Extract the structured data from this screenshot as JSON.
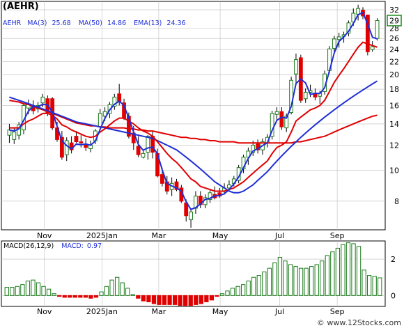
{
  "chart_data": [
    {
      "type": "candlestick",
      "title": "(AEHR)",
      "legend": {
        "ticker": "AEHR",
        "ma3_label": "MA(3)",
        "ma3_value": "25.68",
        "ma50_label": "MA(50)",
        "ma50_value": "14.86",
        "ema13_label": "EMA(13)",
        "ema13_value": "24.36"
      },
      "y_scale": "log",
      "ylim": [
        6.5,
        34
      ],
      "y_ticks": [
        8,
        10,
        12,
        14,
        16,
        18,
        20,
        22,
        24,
        26,
        28,
        32
      ],
      "last_price": "29",
      "x_ticks": [
        "Nov",
        "2025Jan",
        "Mar",
        "May",
        "Jul",
        "Sep"
      ],
      "colors": {
        "up": "#1a7a1a",
        "down": "#e00000",
        "ma_short": "#1f2fd6",
        "ma_long": "#e00000",
        "price_box": "#1a8a1a"
      },
      "candles": [
        {
          "o": 12.9,
          "h": 14.0,
          "l": 12.2,
          "c": 13.4
        },
        {
          "o": 12.5,
          "h": 13.6,
          "l": 12.1,
          "c": 13.2
        },
        {
          "o": 12.9,
          "h": 14.2,
          "l": 12.5,
          "c": 13.9
        },
        {
          "o": 13.4,
          "h": 16.2,
          "l": 13.0,
          "c": 16.0
        },
        {
          "o": 15.7,
          "h": 16.7,
          "l": 15.0,
          "c": 16.2
        },
        {
          "o": 15.9,
          "h": 16.6,
          "l": 15.0,
          "c": 15.4
        },
        {
          "o": 15.6,
          "h": 16.4,
          "l": 15.2,
          "c": 16.0
        },
        {
          "o": 16.3,
          "h": 17.4,
          "l": 15.8,
          "c": 17.0
        },
        {
          "o": 16.8,
          "h": 17.2,
          "l": 14.8,
          "c": 15.2
        },
        {
          "o": 16.8,
          "h": 17.0,
          "l": 13.4,
          "c": 13.6
        },
        {
          "o": 13.6,
          "h": 14.2,
          "l": 12.3,
          "c": 12.5
        },
        {
          "o": 12.7,
          "h": 13.3,
          "l": 10.8,
          "c": 11.0
        },
        {
          "o": 11.2,
          "h": 12.7,
          "l": 10.7,
          "c": 12.4
        },
        {
          "o": 12.2,
          "h": 12.8,
          "l": 11.3,
          "c": 11.6
        },
        {
          "o": 12.8,
          "h": 13.3,
          "l": 12.2,
          "c": 12.3
        },
        {
          "o": 12.3,
          "h": 12.9,
          "l": 11.8,
          "c": 12.2
        },
        {
          "o": 12.1,
          "h": 12.6,
          "l": 11.5,
          "c": 11.8
        },
        {
          "o": 11.7,
          "h": 12.4,
          "l": 11.4,
          "c": 12.0
        },
        {
          "o": 12.4,
          "h": 13.5,
          "l": 12.1,
          "c": 13.3
        },
        {
          "o": 13.7,
          "h": 15.6,
          "l": 13.4,
          "c": 15.1
        },
        {
          "o": 14.8,
          "h": 15.8,
          "l": 14.3,
          "c": 15.3
        },
        {
          "o": 15.1,
          "h": 16.4,
          "l": 14.6,
          "c": 16.1
        },
        {
          "o": 15.9,
          "h": 17.4,
          "l": 15.5,
          "c": 17.0
        },
        {
          "o": 17.4,
          "h": 18.7,
          "l": 16.0,
          "c": 16.4
        },
        {
          "o": 16.3,
          "h": 16.8,
          "l": 14.4,
          "c": 14.6
        },
        {
          "o": 14.8,
          "h": 15.2,
          "l": 12.6,
          "c": 12.8
        },
        {
          "o": 13.1,
          "h": 13.8,
          "l": 11.6,
          "c": 12.2
        },
        {
          "o": 11.9,
          "h": 12.8,
          "l": 11.0,
          "c": 11.2
        },
        {
          "o": 11.0,
          "h": 11.6,
          "l": 10.9,
          "c": 11.3
        },
        {
          "o": 11.4,
          "h": 12.9,
          "l": 10.8,
          "c": 12.8
        },
        {
          "o": 12.8,
          "h": 13.3,
          "l": 10.9,
          "c": 11.4
        },
        {
          "o": 11.3,
          "h": 11.7,
          "l": 9.5,
          "c": 9.6
        },
        {
          "o": 9.7,
          "h": 10.2,
          "l": 8.9,
          "c": 9.1
        },
        {
          "o": 9.2,
          "h": 9.6,
          "l": 8.4,
          "c": 8.6
        },
        {
          "o": 8.7,
          "h": 9.5,
          "l": 8.3,
          "c": 9.1
        },
        {
          "o": 9.2,
          "h": 9.4,
          "l": 8.6,
          "c": 8.7
        },
        {
          "o": 8.8,
          "h": 9.0,
          "l": 7.9,
          "c": 8.0
        },
        {
          "o": 7.9,
          "h": 8.1,
          "l": 6.9,
          "c": 7.2
        },
        {
          "o": 7.0,
          "h": 7.6,
          "l": 6.6,
          "c": 7.4
        },
        {
          "o": 7.6,
          "h": 8.6,
          "l": 7.3,
          "c": 8.3
        },
        {
          "o": 8.3,
          "h": 8.6,
          "l": 7.6,
          "c": 7.8
        },
        {
          "o": 7.8,
          "h": 8.4,
          "l": 7.6,
          "c": 8.2
        },
        {
          "o": 8.1,
          "h": 8.7,
          "l": 7.9,
          "c": 8.5
        },
        {
          "o": 8.4,
          "h": 8.9,
          "l": 8.1,
          "c": 8.2
        },
        {
          "o": 8.5,
          "h": 8.8,
          "l": 8.2,
          "c": 8.3
        },
        {
          "o": 8.6,
          "h": 9.1,
          "l": 8.4,
          "c": 8.8
        },
        {
          "o": 8.8,
          "h": 9.3,
          "l": 8.6,
          "c": 9.0
        },
        {
          "o": 9.1,
          "h": 9.6,
          "l": 8.9,
          "c": 9.4
        },
        {
          "o": 9.3,
          "h": 10.4,
          "l": 9.1,
          "c": 10.2
        },
        {
          "o": 10.1,
          "h": 11.2,
          "l": 9.8,
          "c": 11.0
        },
        {
          "o": 11.0,
          "h": 11.8,
          "l": 10.4,
          "c": 11.5
        },
        {
          "o": 11.4,
          "h": 12.4,
          "l": 11.1,
          "c": 12.0
        },
        {
          "o": 12.1,
          "h": 12.5,
          "l": 11.3,
          "c": 11.6
        },
        {
          "o": 11.6,
          "h": 12.6,
          "l": 11.2,
          "c": 12.3
        },
        {
          "o": 12.2,
          "h": 13.0,
          "l": 11.8,
          "c": 12.7
        },
        {
          "o": 12.8,
          "h": 15.4,
          "l": 12.5,
          "c": 15.1
        },
        {
          "o": 15.0,
          "h": 15.8,
          "l": 14.4,
          "c": 15.3
        },
        {
          "o": 15.3,
          "h": 15.8,
          "l": 13.4,
          "c": 13.7
        },
        {
          "o": 13.6,
          "h": 15.1,
          "l": 13.2,
          "c": 14.8
        },
        {
          "o": 15.2,
          "h": 19.7,
          "l": 15.0,
          "c": 19.2
        },
        {
          "o": 20.1,
          "h": 23.3,
          "l": 18.8,
          "c": 22.3
        },
        {
          "o": 22.6,
          "h": 23.1,
          "l": 16.3,
          "c": 16.6
        },
        {
          "o": 16.8,
          "h": 18.1,
          "l": 16.3,
          "c": 17.6
        },
        {
          "o": 17.6,
          "h": 18.6,
          "l": 17.0,
          "c": 17.8
        },
        {
          "o": 17.5,
          "h": 18.1,
          "l": 16.6,
          "c": 17.0
        },
        {
          "o": 17.1,
          "h": 17.8,
          "l": 16.2,
          "c": 17.5
        },
        {
          "o": 17.7,
          "h": 20.6,
          "l": 17.3,
          "c": 20.1
        },
        {
          "o": 20.6,
          "h": 24.6,
          "l": 20.2,
          "c": 24.1
        },
        {
          "o": 24.2,
          "h": 26.5,
          "l": 23.6,
          "c": 25.9
        },
        {
          "o": 25.8,
          "h": 27.1,
          "l": 24.3,
          "c": 26.3
        },
        {
          "o": 26.4,
          "h": 27.3,
          "l": 25.2,
          "c": 26.7
        },
        {
          "o": 27.0,
          "h": 29.6,
          "l": 26.4,
          "c": 29.1
        },
        {
          "o": 29.3,
          "h": 32.3,
          "l": 28.5,
          "c": 31.2
        },
        {
          "o": 31.0,
          "h": 33.2,
          "l": 29.6,
          "c": 32.3
        },
        {
          "o": 31.9,
          "h": 32.6,
          "l": 29.9,
          "c": 30.6
        },
        {
          "o": 30.8,
          "h": 30.9,
          "l": 23.0,
          "c": 23.6
        },
        {
          "o": 24.0,
          "h": 25.5,
          "l": 23.6,
          "c": 24.5
        },
        {
          "o": 26.0,
          "h": 30.1,
          "l": 25.6,
          "c": 29.6
        }
      ],
      "ema13": [
        13.6,
        13.6,
        13.6,
        14.0,
        14.3,
        14.5,
        14.8,
        15.1,
        15.1,
        14.9,
        14.5,
        13.9,
        13.7,
        13.4,
        13.2,
        13.0,
        12.8,
        12.7,
        12.8,
        13.2,
        13.5,
        13.9,
        14.3,
        14.6,
        14.6,
        14.3,
        14.0,
        13.6,
        13.3,
        13.1,
        12.8,
        12.3,
        11.8,
        11.3,
        10.9,
        10.6,
        10.2,
        9.8,
        9.4,
        9.2,
        8.9,
        8.8,
        8.7,
        8.6,
        8.6,
        8.6,
        8.7,
        8.8,
        9.0,
        9.2,
        9.5,
        9.8,
        10.1,
        10.4,
        10.7,
        11.3,
        11.8,
        12.0,
        12.3,
        13.2,
        14.3,
        14.7,
        15.1,
        15.5,
        15.7,
        16.0,
        16.6,
        17.7,
        18.9,
        19.9,
        20.9,
        22.0,
        23.2,
        24.4,
        25.3,
        25.0,
        24.7,
        24.4
      ],
      "ma50": [
        17.0,
        16.8,
        16.6,
        16.4,
        16.2,
        16.0,
        15.8,
        15.6,
        15.4,
        15.2,
        15.0,
        14.8,
        14.6,
        14.4,
        14.2,
        14.1,
        14.0,
        13.9,
        13.8,
        13.7,
        13.6,
        13.5,
        13.4,
        13.3,
        13.2,
        13.1,
        13.0,
        12.9,
        12.8,
        12.7,
        12.6,
        12.4,
        12.2,
        12.0,
        11.8,
        11.6,
        11.3,
        11.0,
        10.7,
        10.4,
        10.1,
        9.8,
        9.5,
        9.2,
        9.0,
        8.8,
        8.6,
        8.5,
        8.5,
        8.6,
        8.8,
        9.0,
        9.3,
        9.6,
        9.9,
        10.3,
        10.7,
        11.1,
        11.5,
        11.9,
        12.3,
        12.7,
        13.1,
        13.5,
        13.9,
        14.3,
        14.7,
        15.1,
        15.5,
        15.9,
        16.3,
        16.7,
        17.1,
        17.5,
        17.9,
        18.3,
        18.7,
        19.1
      ],
      "ma_long": [
        16.6,
        16.5,
        16.4,
        16.2,
        16.1,
        15.9,
        15.7,
        15.5,
        15.3,
        15.1,
        14.9,
        14.7,
        14.5,
        14.3,
        14.1,
        14.0,
        13.9,
        13.8,
        13.8,
        13.7,
        13.7,
        13.6,
        13.6,
        13.6,
        13.6,
        13.5,
        13.5,
        13.4,
        13.4,
        13.3,
        13.3,
        13.2,
        13.1,
        13.0,
        12.9,
        12.8,
        12.7,
        12.7,
        12.6,
        12.6,
        12.5,
        12.5,
        12.4,
        12.4,
        12.3,
        12.3,
        12.3,
        12.3,
        12.2,
        12.2,
        12.2,
        12.2,
        12.2,
        12.2,
        12.2,
        12.2,
        12.2,
        12.2,
        12.2,
        12.2,
        12.3,
        12.3,
        12.4,
        12.5,
        12.6,
        12.7,
        12.8,
        13.0,
        13.2,
        13.4,
        13.6,
        13.8,
        14.0,
        14.2,
        14.4,
        14.6,
        14.8,
        14.9
      ]
    },
    {
      "type": "bar",
      "title": "MACD(26,12,9)",
      "legend_value_label": "MACD:",
      "legend_value": "0.97",
      "ylim": [
        -0.6,
        3.0
      ],
      "y_ticks": [
        0,
        2
      ],
      "x_ticks": [
        "Nov",
        "2025Jan",
        "Mar",
        "May",
        "Jul",
        "Sep"
      ],
      "values": [
        0.45,
        0.45,
        0.5,
        0.6,
        0.8,
        0.85,
        0.7,
        0.5,
        0.35,
        0.1,
        -0.05,
        -0.1,
        -0.1,
        -0.1,
        -0.1,
        -0.1,
        -0.15,
        -0.1,
        0.2,
        0.5,
        0.85,
        1.0,
        0.7,
        0.4,
        0.05,
        -0.15,
        -0.3,
        -0.35,
        -0.45,
        -0.5,
        -0.5,
        -0.5,
        -0.5,
        -0.55,
        -0.55,
        -0.55,
        -0.5,
        -0.45,
        -0.35,
        -0.25,
        -0.05,
        0.1,
        0.25,
        0.4,
        0.5,
        0.6,
        0.8,
        1.0,
        1.1,
        1.3,
        1.5,
        1.8,
        2.1,
        1.9,
        1.7,
        1.6,
        1.5,
        1.5,
        1.6,
        1.7,
        1.9,
        2.2,
        2.4,
        2.6,
        2.8,
        2.9,
        2.85,
        2.7,
        1.4,
        1.1,
        1.05,
        0.97
      ]
    }
  ],
  "footer": {
    "watermark": "© www.12Stocks.com"
  }
}
